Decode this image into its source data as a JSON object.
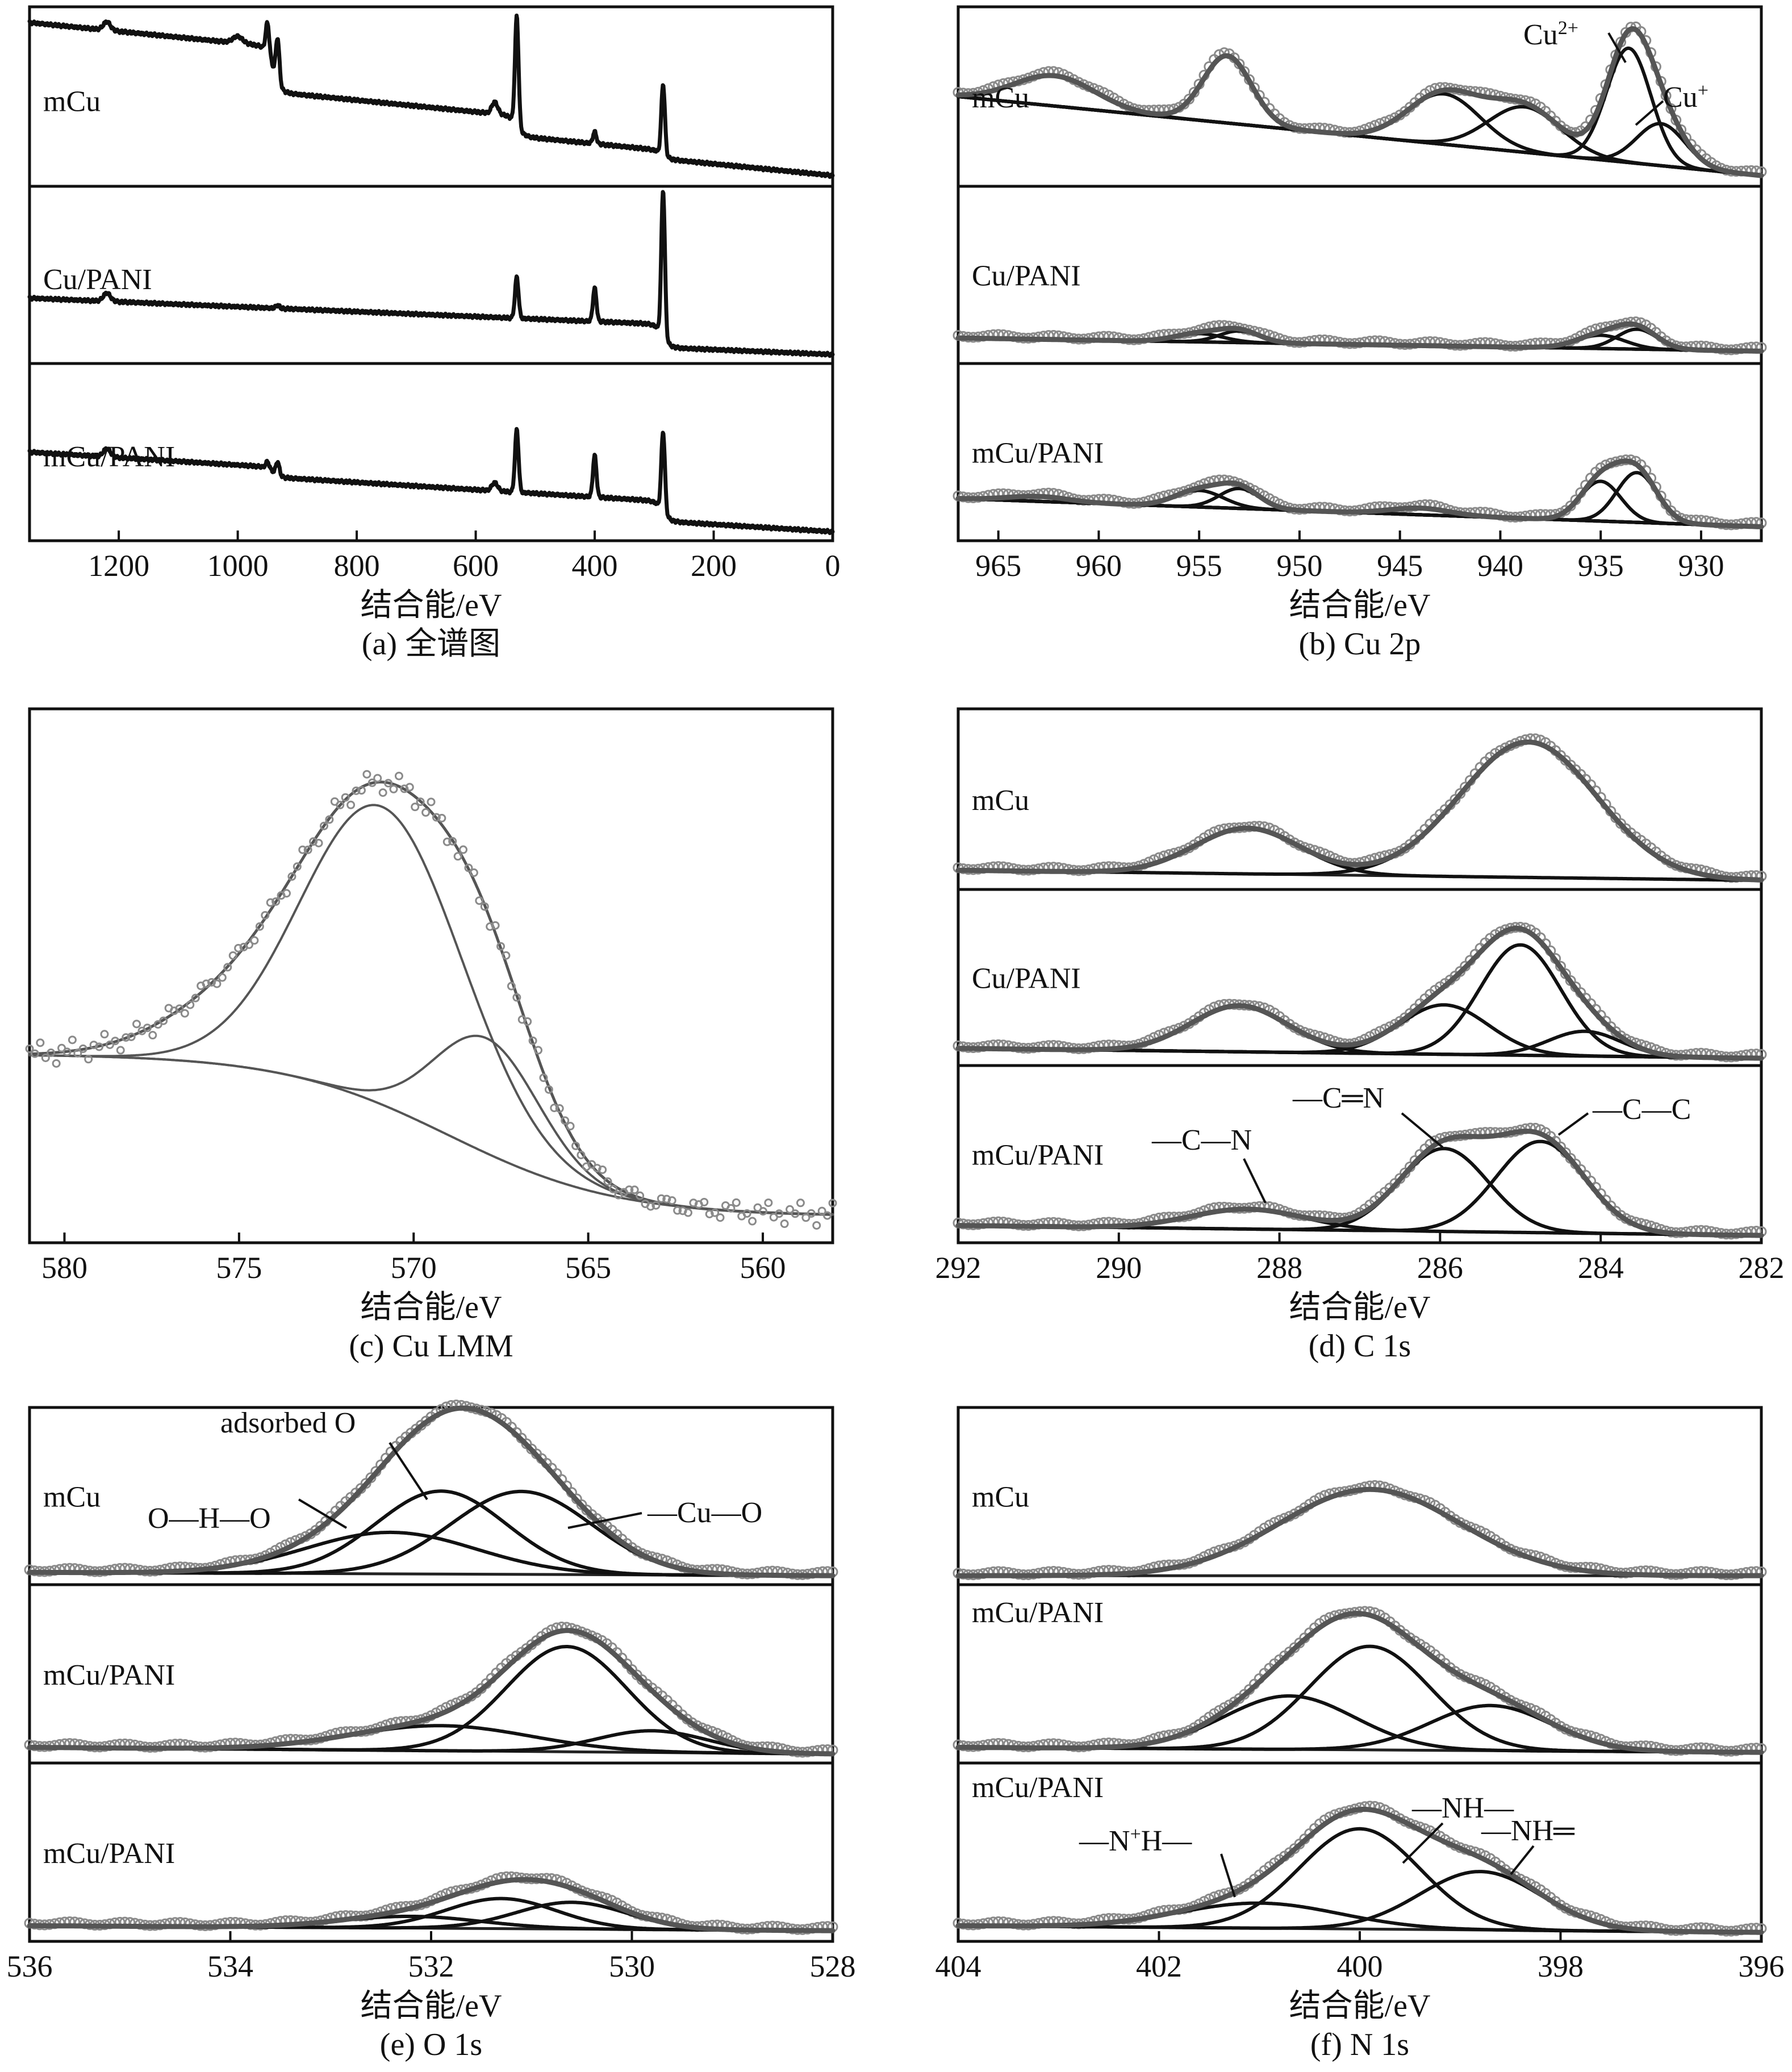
{
  "colors": {
    "envelope": "#555555",
    "component": "#111111",
    "marker": "#8a8a8a",
    "background_line": "#222222"
  },
  "figures": [
    {
      "id": "a",
      "caption": "(a) 全谱图",
      "xlabel": "结合能/eV",
      "xlim": [
        1350,
        0
      ],
      "xticks": [
        1200,
        1000,
        800,
        600,
        400,
        200,
        0
      ],
      "panels": [
        {
          "label": "mCu",
          "annotations": []
        },
        {
          "label": "Cu/PANI",
          "annotations": []
        },
        {
          "label": "mCu/PANI",
          "annotations": []
        }
      ]
    },
    {
      "id": "b",
      "caption": "(b) Cu 2p",
      "xlabel": "结合能/eV",
      "xlim": [
        967,
        927
      ],
      "xticks": [
        965,
        960,
        955,
        950,
        945,
        940,
        935,
        930
      ],
      "panels": [
        {
          "label": "mCu",
          "annotations": [
            {
              "base": "Cu",
              "sup": "2+",
              "target_x": 933.5
            },
            {
              "base": "Cu",
              "sup": "+",
              "target_x": 932.0
            }
          ]
        },
        {
          "label": "Cu/PANI",
          "annotations": []
        },
        {
          "label": "mCu/PANI",
          "annotations": []
        }
      ]
    },
    {
      "id": "c",
      "caption": "(c) Cu LMM",
      "xlabel": "结合能/eV",
      "xlim": [
        581,
        558
      ],
      "xticks": [
        580,
        575,
        570,
        565,
        560
      ],
      "panels": [
        {
          "label": "",
          "annotations": []
        }
      ]
    },
    {
      "id": "d",
      "caption": "(d) C 1s",
      "xlabel": "结合能/eV",
      "xlim": [
        292,
        282
      ],
      "xticks": [
        292,
        290,
        288,
        286,
        284,
        282
      ],
      "panels": [
        {
          "label": "mCu",
          "annotations": []
        },
        {
          "label": "Cu/PANI",
          "annotations": []
        },
        {
          "label": "mCu/PANI",
          "annotations": [
            {
              "text": "—C—N",
              "target_x": 288.3
            },
            {
              "text": "—C═N",
              "target_x": 285.9
            },
            {
              "text": "—C—C",
              "target_x": 284.4
            }
          ]
        }
      ]
    },
    {
      "id": "e",
      "caption": "(e) O 1s",
      "xlabel": "结合能/eV",
      "xlim": [
        536,
        528
      ],
      "xticks": [
        536,
        534,
        532,
        530,
        528
      ],
      "panels": [
        {
          "label": "mCu",
          "annotations": [
            {
              "text": "adsorbed O",
              "target_x": 531.9
            },
            {
              "text": "O—H—O",
              "target_x": 532.8
            },
            {
              "text": "—Cu—O",
              "target_x": 531.0
            }
          ]
        },
        {
          "label": "mCu/PANI",
          "annotations": []
        },
        {
          "label": "mCu/PANI",
          "annotations": []
        }
      ]
    },
    {
      "id": "f",
      "caption": "(f) N 1s",
      "xlabel": "结合能/eV",
      "xlim": [
        404,
        396
      ],
      "xticks": [
        404,
        402,
        400,
        398,
        396
      ],
      "panels": [
        {
          "label": "mCu",
          "annotations": []
        },
        {
          "label": "mCu/PANI",
          "annotations": []
        },
        {
          "label": "mCu/PANI",
          "annotations": [
            {
              "base": "—N",
              "sup": "+",
              "tail": "H—",
              "target_x": 401.1
            },
            {
              "text": "—NH—",
              "target_x": 399.5
            },
            {
              "text": "—NH═",
              "target_x": 398.6
            }
          ]
        }
      ]
    }
  ],
  "chart_data": [
    {
      "type": "line",
      "title": "(a) 全谱图",
      "xlabel": "结合能/eV",
      "xlim": [
        1350,
        0
      ],
      "ylim": [
        0,
        1
      ],
      "series": [
        {
          "name": "mCu",
          "baseline": 0.5,
          "baseline_end": 0.03,
          "steps": [
            {
              "x": 940,
              "drop": 0.27
            },
            {
              "x": 530,
              "drop": 0.12
            },
            {
              "x": 285,
              "drop": 0.05
            }
          ],
          "peaks": [
            {
              "x": 1220,
              "h": 0.05,
              "w": 6
            },
            {
              "x": 1000,
              "h": 0.04,
              "w": 8
            },
            {
              "x": 950,
              "h": 0.18,
              "w": 3
            },
            {
              "x": 933,
              "h": 0.26,
              "w": 3
            },
            {
              "x": 568,
              "h": 0.07,
              "w": 5
            },
            {
              "x": 531,
              "h": 0.65,
              "w": 3
            },
            {
              "x": 400,
              "h": 0.07,
              "w": 3
            },
            {
              "x": 285,
              "h": 0.42,
              "w": 3
            }
          ]
        },
        {
          "name": "Cu/PANI",
          "baseline": 0.22,
          "baseline_end": 0.02,
          "steps": [
            {
              "x": 285,
              "drop": 0.14
            }
          ],
          "peaks": [
            {
              "x": 1220,
              "h": 0.05,
              "w": 6
            },
            {
              "x": 933,
              "h": 0.02,
              "w": 3
            },
            {
              "x": 531,
              "h": 0.25,
              "w": 3
            },
            {
              "x": 400,
              "h": 0.2,
              "w": 3
            },
            {
              "x": 285,
              "h": 0.88,
              "w": 3
            }
          ]
        },
        {
          "name": "mCu/PANI",
          "baseline": 0.32,
          "baseline_end": 0.02,
          "steps": [
            {
              "x": 940,
              "drop": 0.06
            },
            {
              "x": 285,
              "drop": 0.12
            }
          ],
          "peaks": [
            {
              "x": 1220,
              "h": 0.05,
              "w": 6
            },
            {
              "x": 950,
              "h": 0.04,
              "w": 3
            },
            {
              "x": 933,
              "h": 0.08,
              "w": 3
            },
            {
              "x": 568,
              "h": 0.05,
              "w": 5
            },
            {
              "x": 531,
              "h": 0.38,
              "w": 3
            },
            {
              "x": 400,
              "h": 0.25,
              "w": 3
            },
            {
              "x": 285,
              "h": 0.48,
              "w": 3
            }
          ]
        }
      ]
    },
    {
      "type": "line",
      "title": "(b) Cu 2p",
      "xlabel": "结合能/eV",
      "xlim": [
        967,
        927
      ],
      "ylim": [
        0,
        1
      ],
      "series": [
        {
          "name": "mCu",
          "bg": [
            0.5,
            0.03
          ],
          "components": [
            {
              "x": 962.2,
              "h": 0.18,
              "w": 2.0
            },
            {
              "x": 953.6,
              "h": 0.4,
              "w": 1.2
            },
            {
              "x": 942.8,
              "h": 0.3,
              "w": 1.8
            },
            {
              "x": 938.8,
              "h": 0.27,
              "w": 1.8
            },
            {
              "x": 933.6,
              "h": 0.68,
              "w": 1.1
            },
            {
              "x": 932.0,
              "h": 0.25,
              "w": 1.2
            }
          ]
        },
        {
          "name": "Cu/PANI",
          "bg": [
            0.12,
            0.04
          ],
          "components": [
            {
              "x": 955.0,
              "h": 0.05,
              "w": 1.2
            },
            {
              "x": 953.0,
              "h": 0.07,
              "w": 1.0
            },
            {
              "x": 935.0,
              "h": 0.08,
              "w": 1.2
            },
            {
              "x": 933.2,
              "h": 0.12,
              "w": 1.0
            }
          ]
        },
        {
          "name": "mCu/PANI",
          "bg": [
            0.22,
            0.05
          ],
          "components": [
            {
              "x": 963.0,
              "h": 0.03,
              "w": 1.5
            },
            {
              "x": 955.0,
              "h": 0.1,
              "w": 1.2
            },
            {
              "x": 953.0,
              "h": 0.12,
              "w": 1.0
            },
            {
              "x": 944.0,
              "h": 0.04,
              "w": 1.5
            },
            {
              "x": 935.0,
              "h": 0.24,
              "w": 1.0
            },
            {
              "x": 933.2,
              "h": 0.3,
              "w": 1.0
            }
          ]
        }
      ]
    },
    {
      "type": "line",
      "title": "(c) Cu LMM",
      "xlabel": "结合能/eV",
      "xlim": [
        581,
        558
      ],
      "ylim": [
        0,
        1
      ],
      "series": [
        {
          "name": "mCu",
          "background": {
            "low": 0.04,
            "high": 0.35,
            "center": 569,
            "width": 2.4
          },
          "components": [
            {
              "x": 570.9,
              "h": 0.57,
              "w": 2.3
            },
            {
              "x": 567.9,
              "h": 0.22,
              "w": 1.5
            }
          ],
          "shoulder": {
            "x": 575.0,
            "h": 0.1,
            "w": 2.2
          }
        }
      ]
    },
    {
      "type": "line",
      "title": "(d) C 1s",
      "xlabel": "结合能/eV",
      "xlim": [
        292,
        282
      ],
      "ylim": [
        0,
        1
      ],
      "series": [
        {
          "name": "mCu",
          "bg": [
            0.08,
            0.02
          ],
          "components": [
            {
              "x": 288.4,
              "h": 0.27,
              "w": 0.65
            },
            {
              "x": 284.9,
              "h": 0.8,
              "w": 0.85
            }
          ]
        },
        {
          "name": "Cu/PANI",
          "bg": [
            0.07,
            0.01
          ],
          "components": [
            {
              "x": 288.5,
              "h": 0.28,
              "w": 0.6
            },
            {
              "x": 285.95,
              "h": 0.3,
              "w": 0.55
            },
            {
              "x": 285.0,
              "h": 0.67,
              "w": 0.5
            },
            {
              "x": 284.2,
              "h": 0.15,
              "w": 0.45
            }
          ]
        },
        {
          "name": "mCu/PANI",
          "bg": [
            0.07,
            0.01
          ],
          "components": [
            {
              "x": 288.4,
              "h": 0.12,
              "w": 0.7
            },
            {
              "x": 285.95,
              "h": 0.5,
              "w": 0.55
            },
            {
              "x": 284.75,
              "h": 0.55,
              "w": 0.55
            }
          ]
        }
      ]
    },
    {
      "type": "line",
      "title": "(e) O 1s",
      "xlabel": "结合能/eV",
      "xlim": [
        536,
        528
      ],
      "ylim": [
        0,
        1
      ],
      "series": [
        {
          "name": "mCu",
          "bg": [
            0.04,
            0.02
          ],
          "components": [
            {
              "x": 532.4,
              "h": 0.25,
              "w": 0.85
            },
            {
              "x": 531.9,
              "h": 0.5,
              "w": 0.65
            },
            {
              "x": 531.1,
              "h": 0.5,
              "w": 0.7
            }
          ]
        },
        {
          "name": "mCu/PANI",
          "bg": [
            0.06,
            0.02
          ],
          "components": [
            {
              "x": 531.9,
              "h": 0.15,
              "w": 0.9
            },
            {
              "x": 530.65,
              "h": 0.63,
              "w": 0.6
            },
            {
              "x": 529.8,
              "h": 0.13,
              "w": 0.55
            }
          ]
        },
        {
          "name": "mCu/PANI",
          "bg": [
            0.06,
            0.03
          ],
          "components": [
            {
              "x": 532.2,
              "h": 0.07,
              "w": 0.7
            },
            {
              "x": 531.3,
              "h": 0.18,
              "w": 0.55
            },
            {
              "x": 530.6,
              "h": 0.16,
              "w": 0.55
            }
          ]
        }
      ]
    },
    {
      "type": "line",
      "title": "(f) N 1s",
      "xlabel": "结合能/eV",
      "xlim": [
        404,
        396
      ],
      "ylim": [
        0,
        1
      ],
      "series": [
        {
          "name": "mCu",
          "bg": [
            0.02,
            0.02
          ],
          "components": [
            {
              "x": 399.9,
              "h": 0.52,
              "w": 0.9
            }
          ]
        },
        {
          "name": "mCu/PANI",
          "bg": [
            0.06,
            0.03
          ],
          "components": [
            {
              "x": 400.7,
              "h": 0.32,
              "w": 0.65
            },
            {
              "x": 399.9,
              "h": 0.62,
              "w": 0.6
            },
            {
              "x": 398.7,
              "h": 0.27,
              "w": 0.6
            }
          ]
        },
        {
          "name": "mCu/PANI",
          "bg": [
            0.06,
            0.02
          ],
          "components": [
            {
              "x": 401.0,
              "h": 0.15,
              "w": 0.8
            },
            {
              "x": 400.0,
              "h": 0.6,
              "w": 0.6
            },
            {
              "x": 398.8,
              "h": 0.35,
              "w": 0.6
            }
          ]
        }
      ]
    }
  ]
}
